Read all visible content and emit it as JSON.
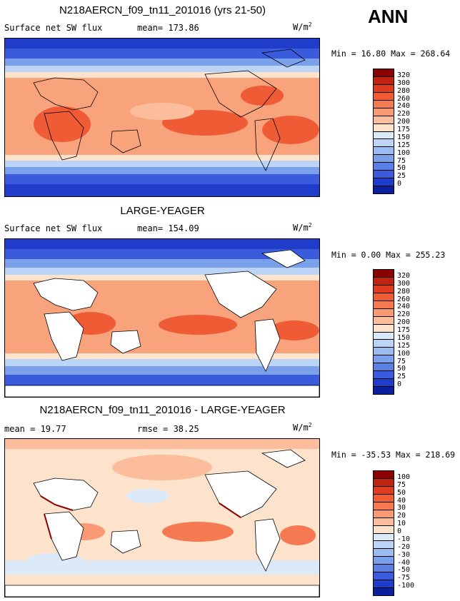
{
  "season": "ANN",
  "panels": [
    {
      "title": "N218AERCN_f09_tn11_201016 (yrs 21-50)",
      "left_text": "Surface net SW flux",
      "right_text": "mean= 173.86",
      "units": "W/m",
      "units_exp": "2",
      "minmax": "Min =  16.80 Max = 268.64",
      "colorbar_labels": [
        "320",
        "300",
        "280",
        "260",
        "240",
        "220",
        "200",
        "175",
        "150",
        "125",
        "100",
        "75",
        "50",
        "25",
        "0"
      ],
      "colorbar_colors": [
        "#8b0000",
        "#c0230f",
        "#de3b1f",
        "#ee5b35",
        "#f57a52",
        "#f99a74",
        "#fbbd9c",
        "#fde2cc",
        "#dbe9f8",
        "#bcd4f5",
        "#9bbcf1",
        "#7aa0ec",
        "#5a80e6",
        "#3a5cdc",
        "#1f3ccb",
        "#0a1f9e"
      ]
    },
    {
      "title": "LARGE-YEAGER",
      "left_text": "Surface net SW flux",
      "right_text": "mean= 154.09",
      "units": "W/m",
      "units_exp": "2",
      "minmax": "Min =   0.00 Max = 255.23",
      "colorbar_labels": [
        "320",
        "300",
        "280",
        "260",
        "240",
        "220",
        "200",
        "175",
        "150",
        "125",
        "100",
        "75",
        "50",
        "25",
        "0"
      ],
      "colorbar_colors": [
        "#8b0000",
        "#c0230f",
        "#de3b1f",
        "#ee5b35",
        "#f57a52",
        "#f99a74",
        "#fbbd9c",
        "#fde2cc",
        "#dbe9f8",
        "#bcd4f5",
        "#9bbcf1",
        "#7aa0ec",
        "#5a80e6",
        "#3a5cdc",
        "#1f3ccb",
        "#0a1f9e"
      ]
    },
    {
      "title": "N218AERCN_f09_tn11_201016 - LARGE-YEAGER",
      "left_text": "mean =  19.77",
      "right_text": "rmse =  38.25",
      "units": "W/m",
      "units_exp": "2",
      "minmax": "Min = -35.53 Max = 218.69",
      "colorbar_labels": [
        "100",
        "75",
        "50",
        "40",
        "30",
        "20",
        "10",
        "0",
        "-10",
        "-20",
        "-30",
        "-40",
        "-50",
        "-75",
        "-100"
      ],
      "colorbar_colors": [
        "#8b0000",
        "#c0230f",
        "#de3b1f",
        "#ee5b35",
        "#f57a52",
        "#f99a74",
        "#fbbd9c",
        "#fde2cc",
        "#dbe9f8",
        "#bcd4f5",
        "#9bbcf1",
        "#7aa0ec",
        "#5a80e6",
        "#3a5cdc",
        "#1f3ccb",
        "#0a1f9e"
      ]
    }
  ]
}
